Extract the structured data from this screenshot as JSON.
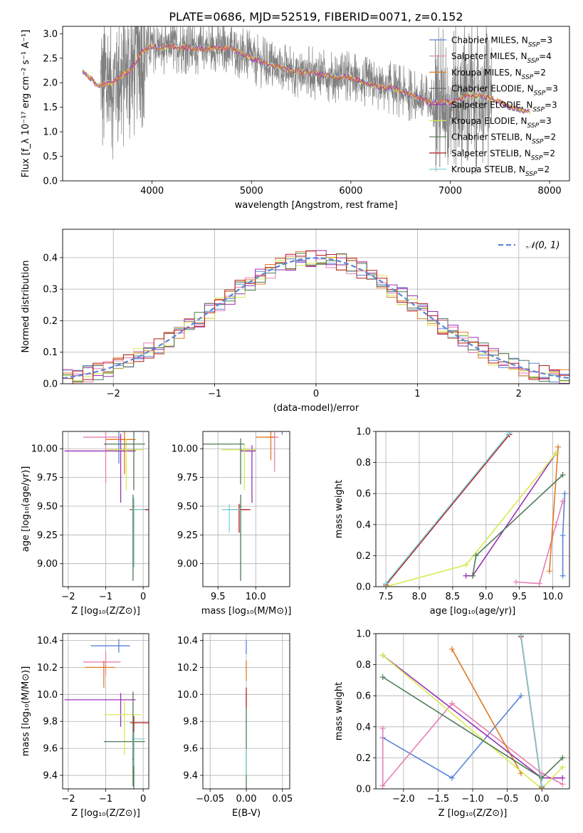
{
  "title": "PLATE=0686, MJD=52519, FIBERID=0071, z=0.152",
  "colors": {
    "chab_miles": "#5b84d8",
    "salp_miles": "#e57fb5",
    "krou_miles": "#e07a22",
    "chab_elodie": "#6e6e6e",
    "salp_elodie": "#9a2fb5",
    "krou_elodie": "#d6eb52",
    "chab_stelib": "#4e7a55",
    "salp_stelib": "#b51c1c",
    "krou_stelib": "#7fd3d6",
    "data_gray": "#808080",
    "normal": "#5b84d8",
    "grid": "#b0b0b0"
  },
  "chart_data": [
    {
      "id": "spectrum",
      "type": "line",
      "xlabel": "wavelength [Angstrom, rest frame]",
      "ylabel": "Flux [f_λ 10⁻¹⁷ erg cm⁻² s⁻¹ A⁻¹]",
      "xlim": [
        3100,
        8200
      ],
      "ylim": [
        0,
        3.15
      ],
      "xticks": [
        4000,
        5000,
        6000,
        7000,
        8000
      ],
      "yticks": [
        0.0,
        0.5,
        1.0,
        1.5,
        2.0,
        2.5,
        3.0
      ],
      "grid": false,
      "legend_position": "upper right",
      "legend": [
        {
          "key": "chab_miles",
          "label": "Chabrier MILES, N_SSP=3"
        },
        {
          "key": "salp_miles",
          "label": "Salpeter MILES, N_SSP=4"
        },
        {
          "key": "krou_miles",
          "label": "Kroupa MILES, N_SSP=2"
        },
        {
          "key": "chab_elodie",
          "label": "Chabrier ELODIE, N_SSP=3"
        },
        {
          "key": "salp_elodie",
          "label": "Salpeter ELODIE, N_SSP=3"
        },
        {
          "key": "krou_elodie",
          "label": "Kroupa ELODIE, N_SSP=3"
        },
        {
          "key": "chab_stelib",
          "label": "Chabrier STELIB, N_SSP=2"
        },
        {
          "key": "salp_stelib",
          "label": "Salpeter STELIB, N_SSP=2"
        },
        {
          "key": "krou_stelib",
          "label": "Kroupa STELIB, N_SSP=2"
        }
      ],
      "model_continuum": {
        "x": [
          3300,
          3450,
          3600,
          3700,
          3800,
          3900,
          4000,
          4100,
          4200,
          4400,
          4600,
          4800,
          5000,
          5200,
          5400,
          5600,
          5800,
          6000,
          6200,
          6400,
          6600,
          6800,
          7000,
          7200,
          7400,
          7600,
          7800
        ],
        "y": [
          2.25,
          1.95,
          2.0,
          2.15,
          2.3,
          2.65,
          2.75,
          2.7,
          2.75,
          2.7,
          2.7,
          2.7,
          2.5,
          2.35,
          2.25,
          2.2,
          2.15,
          2.1,
          1.95,
          1.9,
          1.75,
          1.6,
          1.6,
          1.75,
          1.7,
          1.5,
          1.4
        ]
      },
      "data_noise_range_angstrom": [
        3480,
        7420
      ]
    },
    {
      "id": "residuals",
      "type": "bar",
      "xlabel": "(data-model)/error",
      "ylabel": "Normed distribution",
      "xlim": [
        -2.5,
        2.5
      ],
      "ylim": [
        0,
        0.49
      ],
      "xticks": [
        -2,
        -1,
        0,
        1,
        2
      ],
      "yticks": [
        0.0,
        0.1,
        0.2,
        0.3,
        0.4
      ],
      "grid": true,
      "legend_position": "upper right",
      "legend": [
        {
          "key": "normal",
          "label": "𝒩(0, 1)"
        }
      ],
      "bins": 50,
      "series_keys": [
        "chab_miles",
        "salp_miles",
        "krou_miles",
        "salp_elodie",
        "krou_elodie",
        "chab_stelib",
        "salp_stelib"
      ],
      "normal_curve": {
        "mean": 0,
        "sigma": 1
      }
    },
    {
      "id": "age_vs_Z",
      "type": "scatter",
      "xlabel": "Z [log₁₀(Z/Z⊙)]",
      "ylabel": "age  [log₁₀(age/yr)]",
      "xlim": [
        -2.15,
        0.15
      ],
      "ylim": [
        8.8,
        10.15
      ],
      "xticks": [
        -2,
        -1,
        0
      ],
      "yticks": [
        9.0,
        9.25,
        9.5,
        9.75,
        10.0
      ],
      "grid": true,
      "errorbars": [
        {
          "key": "chab_miles",
          "x": -0.65,
          "y": 10.17,
          "xerr": [
            0.75,
            0.3
          ],
          "yerr": [
            0.3,
            0.1
          ]
        },
        {
          "key": "salp_miles",
          "x": -1.0,
          "y": 10.1,
          "xerr": [
            0.6,
            0.4
          ],
          "yerr": [
            0.4,
            0.15
          ]
        },
        {
          "key": "krou_miles",
          "x": -0.5,
          "y": 10.08,
          "xerr": [
            0.5,
            0.3
          ],
          "yerr": [
            0.3,
            0.15
          ]
        },
        {
          "key": "salp_elodie",
          "x": -0.6,
          "y": 9.98,
          "xerr": [
            1.5,
            0.4
          ],
          "yerr": [
            0.45,
            0.15
          ]
        },
        {
          "key": "krou_elodie",
          "x": -0.45,
          "y": 9.99,
          "xerr": [
            0.55,
            0.45
          ],
          "yerr": [
            0.35,
            0.1
          ]
        },
        {
          "key": "chab_stelib",
          "x": -0.25,
          "y": 10.04,
          "xerr": [
            0.8,
            0.3
          ],
          "yerr": [
            0.4,
            0.15
          ]
        },
        {
          "key": "salp_stelib",
          "x": -0.25,
          "y": 9.47,
          "xerr": [
            0.1,
            0.45
          ],
          "yerr": [
            0.5,
            0.1
          ]
        },
        {
          "key": "krou_stelib",
          "x": -0.25,
          "y": 9.47,
          "xerr": [
            0.05,
            0.3
          ],
          "yerr": [
            0.5,
            0.1
          ]
        },
        {
          "key": "chab_stelib",
          "x": -0.27,
          "y": 9.5,
          "xerr": [
            0.02,
            0.02
          ],
          "yerr": [
            0.65,
            0.1
          ]
        }
      ]
    },
    {
      "id": "age_vs_mass",
      "type": "scatter",
      "xlabel": "mass [log₁₀(M/M⊙)]",
      "ylabel": "",
      "xlim": [
        9.3,
        10.45
      ],
      "ylim": [
        8.8,
        10.15
      ],
      "xticks": [
        9.5,
        10.0
      ],
      "yticks": [
        9.0,
        9.25,
        9.5,
        9.75,
        10.0
      ],
      "grid": true,
      "errorbars": [
        {
          "key": "chab_miles",
          "x": 10.35,
          "y": 10.17,
          "xerr": [
            0.15,
            0.05
          ],
          "yerr": [
            0.05,
            0.05
          ]
        },
        {
          "key": "salp_miles",
          "x": 10.25,
          "y": 10.1,
          "xerr": [
            0.1,
            0.05
          ],
          "yerr": [
            0.3,
            0.05
          ]
        },
        {
          "key": "krou_miles",
          "x": 10.2,
          "y": 10.1,
          "xerr": [
            0.2,
            0.05
          ],
          "yerr": [
            0.2,
            0.05
          ]
        },
        {
          "key": "salp_elodie",
          "x": 9.95,
          "y": 9.98,
          "xerr": [
            0.15,
            0.05
          ],
          "yerr": [
            0.45,
            0.05
          ]
        },
        {
          "key": "krou_elodie",
          "x": 9.85,
          "y": 9.99,
          "xerr": [
            0.3,
            0.15
          ],
          "yerr": [
            0.35,
            0.05
          ]
        },
        {
          "key": "chab_stelib",
          "x": 9.8,
          "y": 10.04,
          "xerr": [
            0.5,
            0.05
          ],
          "yerr": [
            0.35,
            0.05
          ]
        },
        {
          "key": "salp_stelib",
          "x": 9.78,
          "y": 9.47,
          "xerr": [
            0.15,
            0.15
          ],
          "yerr": [
            0.2,
            0.05
          ]
        },
        {
          "key": "krou_stelib",
          "x": 9.65,
          "y": 9.47,
          "xerr": [
            0.1,
            0.15
          ],
          "yerr": [
            0.2,
            0.05
          ]
        },
        {
          "key": "chab_stelib",
          "x": 9.8,
          "y": 9.5,
          "xerr": [
            0.01,
            0.01
          ],
          "yerr": [
            0.65,
            0.1
          ]
        }
      ]
    },
    {
      "id": "mass_weight_vs_age",
      "type": "line",
      "xlabel": "age  [log₁₀(age/yr)]",
      "ylabel": "mass weight",
      "xlim": [
        7.35,
        10.25
      ],
      "ylim": [
        0,
        1.0
      ],
      "xticks": [
        7.5,
        8.0,
        8.5,
        9.0,
        9.5,
        10.0
      ],
      "yticks": [
        0.0,
        0.2,
        0.4,
        0.6,
        0.8,
        1.0
      ],
      "grid": true,
      "series": [
        {
          "key": "chab_miles",
          "x": [
            10.15,
            10.15,
            10.18
          ],
          "y": [
            0.07,
            0.33,
            0.6
          ]
        },
        {
          "key": "salp_miles",
          "x": [
            9.45,
            9.8,
            10.05,
            10.15
          ],
          "y": [
            0.03,
            0.02,
            0.4,
            0.55
          ]
        },
        {
          "key": "krou_miles",
          "x": [
            9.95,
            10.08
          ],
          "y": [
            0.1,
            0.9
          ]
        },
        {
          "key": "salp_elodie",
          "x": [
            8.7,
            8.8,
            10.05
          ],
          "y": [
            0.07,
            0.07,
            0.86
          ]
        },
        {
          "key": "krou_elodie",
          "x": [
            7.5,
            8.7,
            10.05
          ],
          "y": [
            0.0,
            0.14,
            0.86
          ]
        },
        {
          "key": "chab_stelib",
          "x": [
            8.8,
            8.85,
            10.15
          ],
          "y": [
            0.07,
            0.2,
            0.72
          ]
        },
        {
          "key": "salp_stelib",
          "x": [
            7.5,
            9.35
          ],
          "y": [
            0.01,
            0.98
          ]
        },
        {
          "key": "krou_stelib",
          "x": [
            7.5,
            9.35
          ],
          "y": [
            0.02,
            0.99
          ]
        }
      ]
    },
    {
      "id": "mass_vs_Z",
      "type": "scatter",
      "xlabel": "Z [log₁₀(Z/Z⊙)]",
      "ylabel": "mass [log₁₀(M/M⊙)]",
      "xlim": [
        -2.15,
        0.15
      ],
      "ylim": [
        9.3,
        10.45
      ],
      "xticks": [
        -2,
        -1,
        0
      ],
      "yticks": [
        9.4,
        9.6,
        9.8,
        10.0,
        10.2,
        10.4
      ],
      "grid": true,
      "errorbars": [
        {
          "key": "chab_miles",
          "x": -0.65,
          "y": 10.36,
          "xerr": [
            0.75,
            0.3
          ],
          "yerr": [
            0.05,
            0.05
          ]
        },
        {
          "key": "salp_miles",
          "x": -1.0,
          "y": 10.24,
          "xerr": [
            0.6,
            0.4
          ],
          "yerr": [
            0.1,
            0.08
          ]
        },
        {
          "key": "krou_miles",
          "x": -1.05,
          "y": 10.2,
          "xerr": [
            0.5,
            0.3
          ],
          "yerr": [
            0.15,
            0.05
          ]
        },
        {
          "key": "salp_elodie",
          "x": -0.6,
          "y": 9.96,
          "xerr": [
            1.5,
            0.4
          ],
          "yerr": [
            0.2,
            0.05
          ]
        },
        {
          "key": "krou_elodie",
          "x": -0.5,
          "y": 9.85,
          "xerr": [
            0.55,
            0.45
          ],
          "yerr": [
            0.3,
            0.1
          ]
        },
        {
          "key": "chab_stelib",
          "x": -0.25,
          "y": 9.65,
          "xerr": [
            0.8,
            0.3
          ],
          "yerr": [
            0.35,
            0.05
          ]
        },
        {
          "key": "salp_stelib",
          "x": -0.25,
          "y": 9.79,
          "xerr": [
            0.1,
            0.45
          ],
          "yerr": [
            0.25,
            0.05
          ]
        },
        {
          "key": "krou_stelib",
          "x": -0.25,
          "y": 9.67,
          "xerr": [
            0.05,
            0.3
          ],
          "yerr": [
            0.2,
            0.05
          ]
        },
        {
          "key": "chab_stelib",
          "x": -0.27,
          "y": 9.52,
          "xerr": [
            0.02,
            0.02
          ],
          "yerr": [
            0.2,
            0.5
          ]
        }
      ]
    },
    {
      "id": "mass_vs_ebv",
      "type": "scatter",
      "xlabel": "E(B-V)",
      "ylabel": "",
      "xlim": [
        -0.06,
        0.06
      ],
      "ylim": [
        9.3,
        10.45
      ],
      "xticks": [
        -0.05,
        0.0,
        0.05
      ],
      "yticks": [
        9.4,
        9.6,
        9.8,
        10.0,
        10.2,
        10.4
      ],
      "grid": true,
      "errorbars": [
        {
          "key": "chab_miles",
          "x": 0.0,
          "y": 10.35,
          "xerr": [
            0.0,
            0.0
          ],
          "yerr": [
            0.05,
            0.05
          ]
        },
        {
          "key": "krou_miles",
          "x": 0.0,
          "y": 10.2,
          "xerr": [
            0.0,
            0.0
          ],
          "yerr": [
            0.1,
            0.05
          ]
        },
        {
          "key": "salp_stelib",
          "x": 0.0,
          "y": 10.0,
          "xerr": [
            0.0,
            0.0
          ],
          "yerr": [
            0.1,
            0.05
          ]
        },
        {
          "key": "chab_stelib",
          "x": 0.0,
          "y": 9.6,
          "xerr": [
            0.0,
            0.0
          ],
          "yerr": [
            0.3,
            0.3
          ]
        },
        {
          "key": "krou_stelib",
          "x": 0.0,
          "y": 9.5,
          "xerr": [
            0.0,
            0.0
          ],
          "yerr": [
            0.1,
            0.1
          ]
        }
      ]
    },
    {
      "id": "mass_weight_vs_Z",
      "type": "line",
      "xlabel": "Z [log₁₀(Z/Z⊙)]",
      "ylabel": "mass weight",
      "xlim": [
        -2.4,
        0.4
      ],
      "ylim": [
        0,
        1.0
      ],
      "xticks": [
        -2.0,
        -1.5,
        -1.0,
        -0.5,
        0.0
      ],
      "yticks": [
        0.0,
        0.2,
        0.4,
        0.6,
        0.8,
        1.0
      ],
      "grid": true,
      "series": [
        {
          "key": "chab_miles",
          "x": [
            -2.3,
            -1.3,
            -0.3
          ],
          "y": [
            0.33,
            0.07,
            0.6
          ]
        },
        {
          "key": "salp_miles",
          "x": [
            -2.3,
            -2.3,
            -1.3,
            0.0,
            0.3
          ],
          "y": [
            0.39,
            0.02,
            0.55,
            0.1,
            0.03
          ]
        },
        {
          "key": "krou_miles",
          "x": [
            -1.3,
            -0.3
          ],
          "y": [
            0.9,
            0.1
          ]
        },
        {
          "key": "salp_elodie",
          "x": [
            -2.3,
            0.0,
            0.3
          ],
          "y": [
            0.86,
            0.07,
            0.07
          ]
        },
        {
          "key": "krou_elodie",
          "x": [
            -2.3,
            0.0,
            0.3
          ],
          "y": [
            0.86,
            0.0,
            0.14
          ]
        },
        {
          "key": "chab_stelib",
          "x": [
            -2.3,
            0.0,
            0.3
          ],
          "y": [
            0.72,
            0.07,
            0.2
          ]
        },
        {
          "key": "salp_stelib",
          "x": [
            -0.3,
            0.0
          ],
          "y": [
            0.98,
            0.01
          ]
        },
        {
          "key": "krou_stelib",
          "x": [
            -0.3,
            0.0
          ],
          "y": [
            0.99,
            0.02
          ]
        }
      ]
    }
  ]
}
